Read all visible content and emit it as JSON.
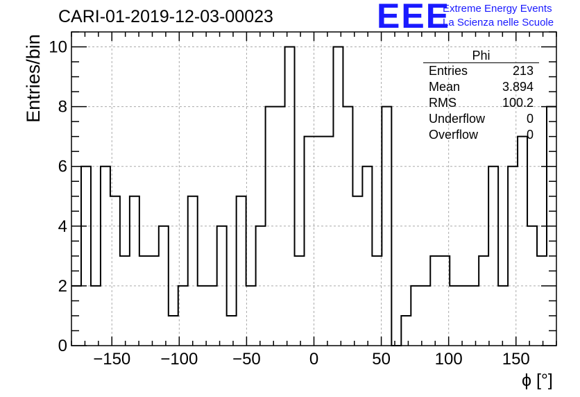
{
  "title": "CARI-01-2019-12-03-00023",
  "logo": {
    "mark": "EEE",
    "line1": "Extreme Energy Events",
    "line2": "La Scienza nelle Scuole",
    "color": "#1a1aff"
  },
  "stats_box": {
    "title": "Phi",
    "rows": [
      {
        "label": "Entries",
        "value": "213"
      },
      {
        "label": "Mean",
        "value": "3.894"
      },
      {
        "label": "RMS",
        "value": "100.2"
      },
      {
        "label": "Underflow",
        "value": "0"
      },
      {
        "label": "Overflow",
        "value": "0"
      }
    ]
  },
  "chart_data": {
    "type": "histogram",
    "title": "CARI-01-2019-12-03-00023",
    "xlabel": "ϕ [°]",
    "ylabel": "Entries/bin",
    "xlim": [
      -180,
      180
    ],
    "ylim": [
      0,
      10.5
    ],
    "xticks": [
      -150,
      -100,
      -50,
      0,
      50,
      100,
      150
    ],
    "xtick_labels": [
      "−150",
      "−100",
      "−50",
      "0",
      "50",
      "100",
      "150"
    ],
    "yticks": [
      0,
      2,
      4,
      6,
      8,
      10
    ],
    "ytick_labels": [
      "0",
      "2",
      "4",
      "6",
      "8",
      "10"
    ],
    "grid": true,
    "bin_width": 7.2,
    "bins_start": -180,
    "values": [
      2,
      6,
      2,
      6,
      5,
      3,
      5,
      3,
      3,
      4,
      1,
      2,
      5,
      2,
      2,
      4,
      1,
      5,
      2,
      4,
      8,
      8,
      10,
      3,
      7,
      7,
      7,
      10,
      8,
      5,
      6,
      3,
      8,
      0,
      1,
      2,
      2,
      3,
      3,
      2,
      2,
      2,
      3,
      6,
      2,
      6,
      7,
      4,
      3,
      8
    ]
  }
}
